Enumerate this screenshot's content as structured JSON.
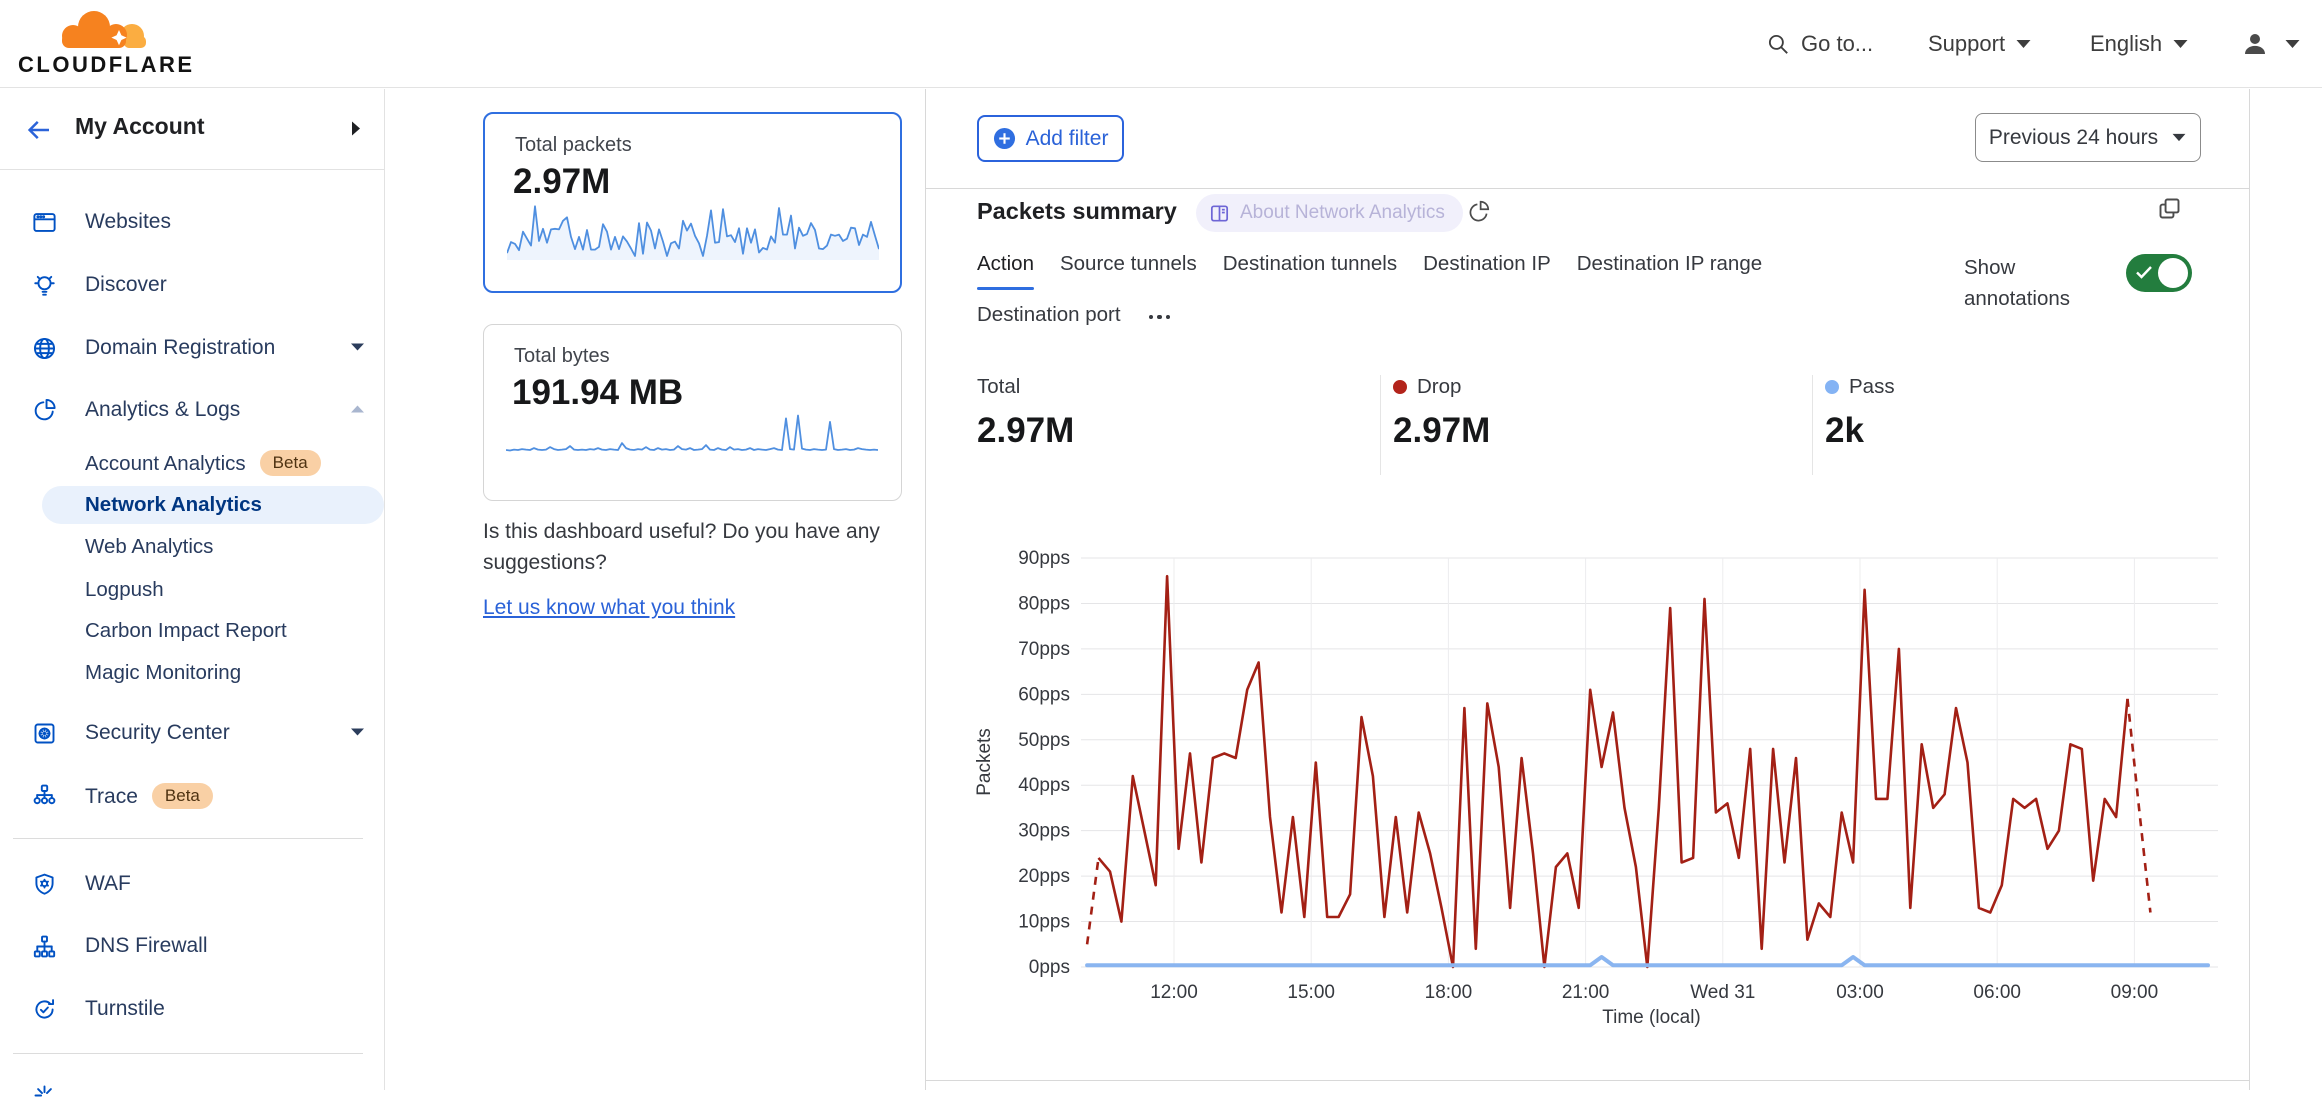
{
  "header": {
    "logo_text": "CLOUDFLARE",
    "goto": "Go to...",
    "support": "Support",
    "language": "English"
  },
  "sidebar": {
    "account_label": "My Account",
    "items": [
      {
        "icon": "browser-icon",
        "label": "Websites",
        "type": "parent"
      },
      {
        "icon": "bulb-icon",
        "label": "Discover",
        "type": "parent"
      },
      {
        "icon": "globe-icon",
        "label": "Domain Registration",
        "type": "parent",
        "caret": "down"
      },
      {
        "icon": "pie-chart-icon",
        "label": "Analytics & Logs",
        "type": "parent",
        "caret": "up"
      },
      {
        "label": "Account Analytics",
        "type": "sub",
        "badge": "Beta"
      },
      {
        "label": "Network Analytics",
        "type": "sub",
        "selected": true
      },
      {
        "label": "Web Analytics",
        "type": "sub"
      },
      {
        "label": "Logpush",
        "type": "sub"
      },
      {
        "label": "Carbon Impact Report",
        "type": "sub"
      },
      {
        "label": "Magic Monitoring",
        "type": "sub"
      },
      {
        "icon": "vault-icon",
        "label": "Security Center",
        "type": "parent",
        "caret": "down"
      },
      {
        "icon": "trace-icon",
        "label": "Trace",
        "type": "parent",
        "badge": "Beta"
      },
      {
        "type": "divider"
      },
      {
        "icon": "shield-gear-icon",
        "label": "WAF",
        "type": "parent"
      },
      {
        "icon": "network-tree-icon",
        "label": "DNS Firewall",
        "type": "parent"
      },
      {
        "icon": "refresh-check-icon",
        "label": "Turnstile",
        "type": "parent"
      },
      {
        "type": "divider"
      },
      {
        "icon": "starburst-icon",
        "label": "",
        "type": "parent",
        "partial": true
      }
    ]
  },
  "summary_cards": [
    {
      "label": "Total packets",
      "value": "2.97M",
      "selected": true
    },
    {
      "label": "Total bytes",
      "value": "191.94 MB",
      "selected": false
    }
  ],
  "feedback": {
    "line1": "Is this dashboard useful? Do you have any suggestions?",
    "link": "Let us know what you think"
  },
  "filters": {
    "add_filter": "Add filter",
    "time_range": "Previous 24 hours"
  },
  "panel": {
    "title": "Packets summary",
    "about_badge": "About Network Analytics",
    "tabs": [
      "Action",
      "Source tunnels",
      "Destination tunnels",
      "Destination IP",
      "Destination IP range",
      "Destination port"
    ],
    "active_tab": "Action",
    "show_annotations": "Show annotations",
    "stats": [
      {
        "label": "Total",
        "value": "2.97M",
        "dot": ""
      },
      {
        "label": "Drop",
        "value": "2.97M",
        "dot": "#b3241b"
      },
      {
        "label": "Pass",
        "value": "2k",
        "dot": "#84b3f4"
      }
    ]
  },
  "chart_data": {
    "type": "line",
    "title": "Packets summary",
    "xlabel": "Time (local)",
    "ylabel": "Packets",
    "x_ticks": [
      "12:00",
      "15:00",
      "18:00",
      "21:00",
      "Wed 31",
      "03:00",
      "06:00",
      "09:00"
    ],
    "y_ticks": [
      "0pps",
      "10pps",
      "20pps",
      "30pps",
      "40pps",
      "50pps",
      "60pps",
      "70pps",
      "80pps",
      "90pps"
    ],
    "ylim": [
      0,
      90
    ],
    "start_hour": 10.1,
    "step_hours": 0.25,
    "grid": true,
    "series": [
      {
        "name": "Drop",
        "color": "#a32015",
        "dashed_ends": true,
        "values": [
          5,
          24,
          21,
          10,
          42,
          30,
          18,
          86,
          26,
          47,
          23,
          46,
          47,
          46,
          61,
          67,
          33,
          12,
          33,
          11,
          45,
          11,
          11,
          16,
          55,
          42,
          11,
          33,
          12,
          34,
          25,
          13,
          0,
          57,
          4,
          58,
          44,
          13,
          46,
          25,
          0,
          22,
          25,
          13,
          61,
          44,
          56,
          35,
          22,
          0,
          35,
          79,
          23,
          24,
          81,
          34,
          36,
          24,
          48,
          4,
          48,
          23,
          46,
          6,
          14,
          11,
          34,
          23,
          83,
          37,
          37,
          70,
          13,
          49,
          35,
          38,
          57,
          45,
          13,
          12,
          18,
          37,
          35,
          37,
          26,
          30,
          49,
          48,
          19,
          37,
          33,
          59,
          35,
          12
        ]
      },
      {
        "name": "Pass",
        "color": "#8ab5f0",
        "base": 0.4,
        "bumps": [
          {
            "index": 45,
            "value": 2.2
          },
          {
            "index": 67,
            "value": 2.2
          }
        ]
      }
    ]
  },
  "sparklines": {
    "packets_note": "same shape as Drop series",
    "bytes": [
      8,
      7,
      9,
      8,
      10,
      9,
      8,
      12,
      9,
      8,
      9,
      14,
      10,
      8,
      9,
      10,
      16,
      9,
      8,
      9,
      8,
      10,
      9,
      12,
      9,
      8,
      10,
      9,
      8,
      22,
      12,
      9,
      8,
      10,
      9,
      14,
      9,
      8,
      12,
      9,
      10,
      8,
      9,
      16,
      10,
      9,
      12,
      8,
      9,
      10,
      18,
      9,
      8,
      12,
      9,
      8,
      14,
      9,
      10,
      8,
      9,
      12,
      8,
      10,
      9,
      8,
      10,
      12,
      9,
      8,
      72,
      10,
      9,
      78,
      11,
      9,
      8,
      10,
      9,
      8,
      9,
      65,
      10,
      8,
      9,
      10,
      8,
      9,
      12,
      10,
      9,
      8,
      9,
      8
    ]
  }
}
